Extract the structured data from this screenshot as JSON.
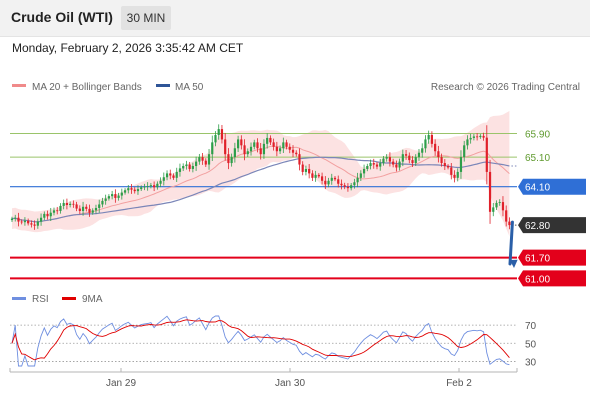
{
  "header": {
    "title": "Crude Oil (WTI)",
    "timeframe": "30 MIN",
    "datetime": "Monday, February 2, 2026 3:35:42 AM CET"
  },
  "legend": {
    "items": [
      {
        "label": "MA 20 + Bollinger Bands",
        "color": "#f08a8a"
      },
      {
        "label": "MA 50",
        "color": "#2f5597"
      }
    ],
    "credit": "Research © 2026 Trading Central"
  },
  "colors": {
    "bull": "#2e9e4a",
    "bear": "#e0202a",
    "band": "#fbdddd",
    "ma20": "#f2a0a0",
    "ma50": "#7b86b8",
    "pivot": "#2f6fd6",
    "resistance": "#9ac46a",
    "support": "#e3001b",
    "arrow": "#2a5fa8"
  },
  "chart_data": [
    {
      "type": "candlestick",
      "x_ticks": [
        "Jan 29",
        "Jan 30",
        "Feb 2"
      ],
      "ylim": [
        60.3,
        67.0
      ],
      "levels": [
        {
          "value": 65.9,
          "label": "65.90",
          "kind": "resistance"
        },
        {
          "value": 65.1,
          "label": "65.10",
          "kind": "resistance"
        },
        {
          "value": 64.1,
          "label": "64.10",
          "kind": "pivot"
        },
        {
          "value": 62.8,
          "label": "62.80",
          "kind": "last"
        },
        {
          "value": 61.7,
          "label": "61.70",
          "kind": "support"
        },
        {
          "value": 61.0,
          "label": "61.00",
          "kind": "support"
        }
      ],
      "forecast_arrow": {
        "from": 62.9,
        "to": 61.35
      },
      "close": [
        63.02,
        63.05,
        62.92,
        62.9,
        62.95,
        62.86,
        62.82,
        62.78,
        62.92,
        63.05,
        63.18,
        63.1,
        63.22,
        63.3,
        63.28,
        63.45,
        63.55,
        63.48,
        63.52,
        63.5,
        63.36,
        63.28,
        63.42,
        63.35,
        63.22,
        63.3,
        63.38,
        63.5,
        63.62,
        63.7,
        63.78,
        63.85,
        63.72,
        63.8,
        63.9,
        63.98,
        64.05,
        64.0,
        63.95,
        64.02,
        64.08,
        64.1,
        64.12,
        64.15,
        64.08,
        64.2,
        64.3,
        64.42,
        64.55,
        64.48,
        64.4,
        64.6,
        64.72,
        64.8,
        64.85,
        64.7,
        64.8,
        64.95,
        65.1,
        64.98,
        64.85,
        65.2,
        65.6,
        65.85,
        66.05,
        65.7,
        65.2,
        64.9,
        65.1,
        65.4,
        65.7,
        65.5,
        65.2,
        65.3,
        65.45,
        65.6,
        65.4,
        65.2,
        65.55,
        65.75,
        65.6,
        65.45,
        65.3,
        65.4,
        65.6,
        65.45,
        65.35,
        65.25,
        65.2,
        64.85,
        64.6,
        64.7,
        64.55,
        64.4,
        64.5,
        64.45,
        64.3,
        64.18,
        64.3,
        64.4,
        64.35,
        64.2,
        64.15,
        64.1,
        64.05,
        64.15,
        64.25,
        64.4,
        64.55,
        64.7,
        64.8,
        64.9,
        64.85,
        64.78,
        64.9,
        65.05,
        65.1,
        64.95,
        64.85,
        64.75,
        64.95,
        65.2,
        65.15,
        65.0,
        64.9,
        65.1,
        65.25,
        65.4,
        65.7,
        65.85,
        65.55,
        65.3,
        65.1,
        64.9,
        64.8,
        64.75,
        64.5,
        64.4,
        64.6,
        65.1,
        65.5,
        65.7,
        65.75,
        65.8,
        65.78,
        65.82,
        65.76,
        64.6,
        63.25,
        63.4,
        63.55,
        63.58,
        63.3,
        62.92,
        62.8
      ],
      "rsi": {
        "ylim": [
          25,
          80
        ],
        "ticks": [
          70,
          50,
          30
        ],
        "legend": [
          {
            "label": "RSI",
            "color": "#6f8fe0"
          },
          {
            "label": "9MA",
            "color": "#e00000"
          }
        ]
      }
    }
  ]
}
